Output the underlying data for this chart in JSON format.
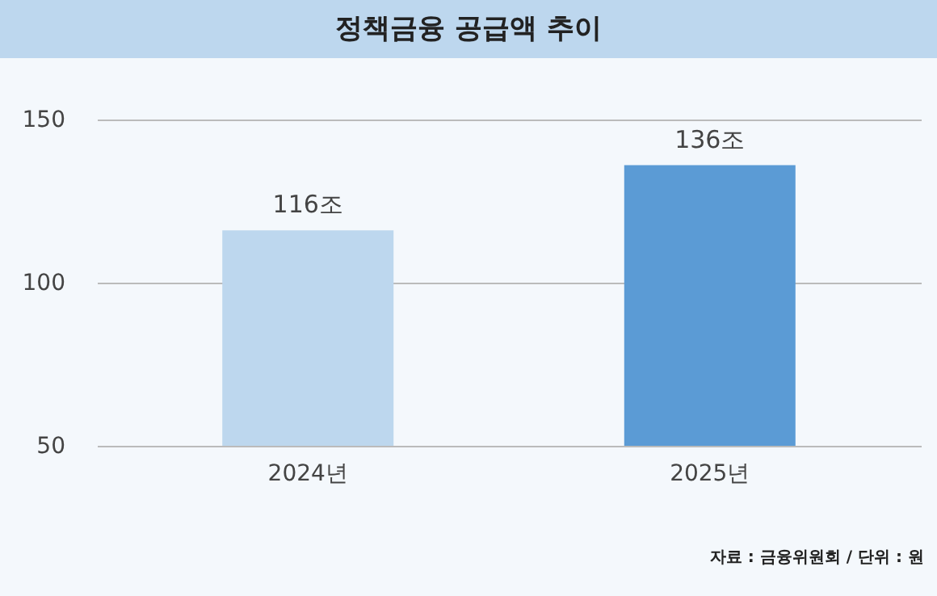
{
  "chart_data": {
    "type": "bar",
    "title": "정책금융 공급액 추이",
    "categories": [
      "2024년",
      "2025년"
    ],
    "values": [
      116,
      136
    ],
    "colors": [
      "#bdd7ee",
      "#5b9bd5"
    ],
    "value_labels": [
      "116조",
      "136조"
    ],
    "ylim": [
      50,
      150
    ],
    "yticks": [
      50,
      100,
      150
    ],
    "grid": "y",
    "annotations": [
      "자료 : 금융위원회 / 단위 : 원"
    ]
  }
}
